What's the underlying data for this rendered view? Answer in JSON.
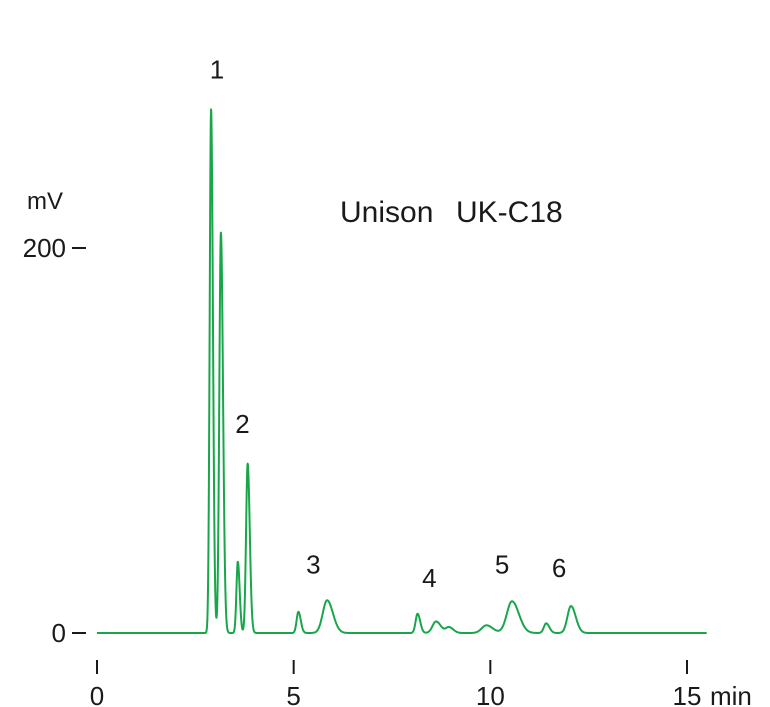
{
  "chart_data": {
    "type": "line",
    "title_prefix": "Unison",
    "title_main": "UK-C18",
    "xlabel": "min",
    "ylabel": "mV",
    "xlim": [
      0,
      15.5
    ],
    "ylim": [
      -20,
      300
    ],
    "x_ticks": [
      {
        "value": 0,
        "label": "0"
      },
      {
        "value": 5,
        "label": "5"
      },
      {
        "value": 10,
        "label": "10"
      },
      {
        "value": 15,
        "label": "15"
      }
    ],
    "y_ticks": [
      {
        "value": 0,
        "label": "0"
      },
      {
        "value": 200,
        "label": "200"
      }
    ],
    "series": [
      {
        "color": "#19a64a",
        "baseline": 0,
        "end_x": 15.5,
        "peaks": [
          {
            "x": 2.9,
            "height": 272,
            "width": 0.035
          },
          {
            "x": 3.15,
            "height": 208,
            "width": 0.04
          },
          {
            "x": 3.58,
            "height": 37,
            "width": 0.035
          },
          {
            "x": 3.83,
            "height": 88,
            "width": 0.04
          },
          {
            "x": 5.12,
            "height": 11,
            "width": 0.045
          },
          {
            "x": 5.85,
            "height": 17,
            "width": 0.11
          },
          {
            "x": 8.15,
            "height": 10,
            "width": 0.05
          },
          {
            "x": 8.62,
            "height": 6,
            "width": 0.09
          },
          {
            "x": 8.95,
            "height": 3,
            "width": 0.08
          },
          {
            "x": 9.9,
            "height": 4,
            "width": 0.12
          },
          {
            "x": 10.55,
            "height": 16.5,
            "width": 0.13
          },
          {
            "x": 11.42,
            "height": 5,
            "width": 0.06
          },
          {
            "x": 12.05,
            "height": 14,
            "width": 0.09
          }
        ]
      }
    ],
    "annotations": [
      {
        "label": "1",
        "x": 3.05,
        "y": 288
      },
      {
        "label": "2",
        "x": 3.7,
        "y": 104
      },
      {
        "label": "3",
        "x": 5.5,
        "y": 31
      },
      {
        "label": "4",
        "x": 8.45,
        "y": 24
      },
      {
        "label": "5",
        "x": 10.3,
        "y": 31
      },
      {
        "label": "6",
        "x": 11.75,
        "y": 29
      }
    ]
  }
}
